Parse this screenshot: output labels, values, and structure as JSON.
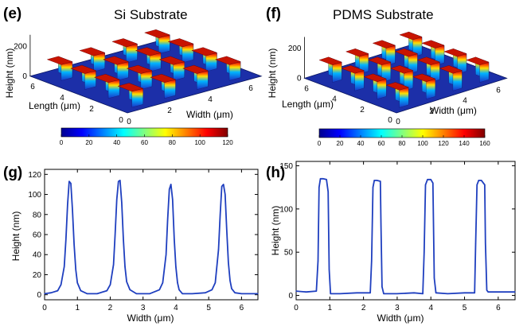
{
  "colors": {
    "line": "#1f3fbf",
    "surface_base": "#1c2fa8",
    "axis": "#000000"
  },
  "colormap": [
    "#00008f",
    "#0000ff",
    "#0080ff",
    "#00ffff",
    "#80ff80",
    "#ffff00",
    "#ff8000",
    "#ff0000",
    "#800000"
  ],
  "chart_data": [
    {
      "id": "e",
      "letter": "(e)",
      "type": "surface3d",
      "title": "Si Substrate",
      "xlabel": "Width (μm)",
      "ylabel": "Length (μm)",
      "zlabel": "Height (nm)",
      "xticks": [
        "0",
        "2",
        "4",
        "6"
      ],
      "yticks": [
        "0",
        "2",
        "4",
        "6"
      ],
      "zticks": [
        "0",
        "200"
      ],
      "grid": {
        "rows": 4,
        "cols": 4
      },
      "peak_height_nm": 115,
      "colorbar": {
        "ticks": [
          "0",
          "20",
          "40",
          "60",
          "80",
          "100",
          "120"
        ],
        "range": [
          0,
          120
        ]
      }
    },
    {
      "id": "f",
      "letter": "(f)",
      "type": "surface3d",
      "title": "PDMS Substrate",
      "xlabel": "Width (μm)",
      "ylabel": "Length (μm)",
      "zlabel": "Height (nm)",
      "xticks": [
        "0",
        "2",
        "4",
        "6"
      ],
      "yticks": [
        "0",
        "2",
        "4",
        "6"
      ],
      "zticks": [
        "0",
        "200"
      ],
      "grid": {
        "rows": 4,
        "cols": 4
      },
      "peak_height_nm": 135,
      "colorbar": {
        "ticks": [
          "0",
          "20",
          "40",
          "60",
          "80",
          "100",
          "120",
          "140",
          "160"
        ],
        "range": [
          0,
          160
        ]
      }
    },
    {
      "id": "g",
      "letter": "(g)",
      "type": "line",
      "xlabel": "Width (μm)",
      "ylabel": "Height (nm)",
      "xlim": [
        0,
        6.5
      ],
      "ylim": [
        -5,
        125
      ],
      "xticks": [
        "0",
        "1",
        "2",
        "3",
        "4",
        "5",
        "6"
      ],
      "yticks": [
        "0",
        "20",
        "40",
        "60",
        "80",
        "100",
        "120"
      ],
      "series": [
        {
          "x": [
            0,
            0.2,
            0.4,
            0.5,
            0.6,
            0.65,
            0.7,
            0.75,
            0.8,
            0.85,
            0.9,
            0.95,
            1.0,
            1.1,
            1.3,
            1.6,
            1.9,
            2.0,
            2.1,
            2.15,
            2.2,
            2.25,
            2.3,
            2.35,
            2.4,
            2.45,
            2.5,
            2.6,
            2.8,
            3.2,
            3.5,
            3.6,
            3.7,
            3.75,
            3.8,
            3.85,
            3.9,
            3.95,
            4.0,
            4.05,
            4.1,
            4.2,
            4.5,
            4.9,
            5.1,
            5.2,
            5.3,
            5.35,
            5.4,
            5.45,
            5.5,
            5.55,
            5.6,
            5.65,
            5.7,
            5.8,
            6.0,
            6.5
          ],
          "y": [
            1,
            2,
            4,
            10,
            28,
            55,
            90,
            113,
            111,
            85,
            50,
            25,
            12,
            4,
            1,
            1,
            4,
            10,
            30,
            60,
            95,
            113,
            114,
            92,
            55,
            28,
            13,
            5,
            1,
            1,
            5,
            12,
            40,
            75,
            105,
            110,
            95,
            55,
            28,
            12,
            5,
            1,
            1,
            2,
            5,
            12,
            45,
            80,
            108,
            110,
            100,
            65,
            32,
            14,
            6,
            2,
            1,
            1
          ]
        }
      ]
    },
    {
      "id": "h",
      "letter": "(h)",
      "type": "line",
      "xlabel": "Width (μm)",
      "ylabel": "Height (nm)",
      "xlim": [
        0,
        6.5
      ],
      "ylim": [
        -5,
        155
      ],
      "xticks": [
        "0",
        "1",
        "2",
        "3",
        "4",
        "5",
        "6"
      ],
      "yticks": [
        "0",
        "50",
        "100",
        "150"
      ],
      "series": [
        {
          "x": [
            0,
            0.3,
            0.6,
            0.65,
            0.68,
            0.72,
            0.8,
            0.9,
            0.95,
            0.98,
            1.02,
            1.3,
            1.8,
            2.2,
            2.24,
            2.28,
            2.32,
            2.4,
            2.5,
            2.52,
            2.55,
            2.6,
            3.0,
            3.5,
            3.76,
            3.8,
            3.84,
            3.9,
            4.0,
            4.06,
            4.1,
            4.15,
            4.5,
            5.0,
            5.3,
            5.33,
            5.37,
            5.42,
            5.5,
            5.6,
            5.62,
            5.66,
            5.7,
            6.0,
            6.5
          ],
          "y": [
            5,
            4,
            5,
            40,
            125,
            135,
            135,
            134,
            120,
            30,
            2,
            2,
            3,
            3,
            40,
            125,
            133,
            133,
            132,
            80,
            10,
            2,
            2,
            3,
            2,
            50,
            128,
            134,
            134,
            130,
            20,
            3,
            2,
            3,
            3,
            60,
            128,
            133,
            133,
            128,
            60,
            6,
            4,
            4,
            4
          ]
        }
      ]
    }
  ]
}
